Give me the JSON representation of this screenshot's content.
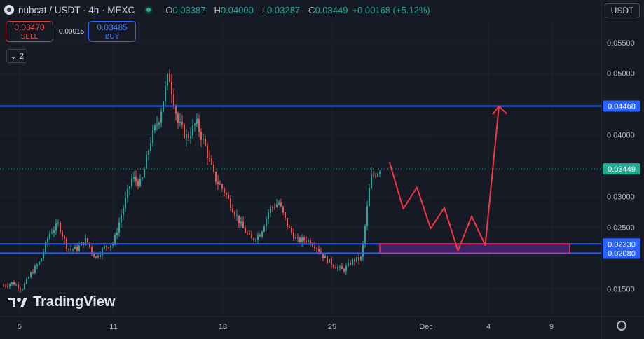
{
  "header": {
    "title": "nubcat / USDT · 4h · MEXC",
    "open_label": "O",
    "open": "0.03387",
    "high_label": "H",
    "high": "0.04000",
    "low_label": "L",
    "low": "0.03287",
    "close_label": "C",
    "close": "0.03449",
    "change": "+0.00168 (+5.12%)"
  },
  "trade": {
    "sell_price": "0.03470",
    "sell_label": "SELL",
    "spread": "0.00015",
    "buy_price": "0.03485",
    "buy_label": "BUY"
  },
  "indicators_toggle": "2",
  "currency_button": "USDT",
  "watermark": "TradingView",
  "colors": {
    "up": "#26a69a",
    "down": "#ef5350",
    "level": "#2962ff",
    "arrow": "#f23645",
    "zone": "#5b2e9a",
    "current": "#22ab94"
  },
  "chart_data": {
    "type": "candlestick",
    "timeframe": "4h",
    "x_ticks": [
      "5",
      "11",
      "18",
      "25",
      "Dec",
      "4",
      "9"
    ],
    "y_ticks": [
      "0.05500",
      "0.05000",
      "0.04000",
      "0.03000",
      "0.02500",
      "0.01500"
    ],
    "ylim": [
      0.0105,
      0.0585
    ],
    "last_price": "0.03449",
    "horizontal_levels": [
      {
        "label": "0.04468",
        "value": 0.04468
      },
      {
        "label": "0.02230",
        "value": 0.0223
      },
      {
        "label": "0.02080",
        "value": 0.0208
      }
    ],
    "zone": {
      "low": 0.0208,
      "high": 0.0223
    },
    "projected_path": [
      0.0355,
      0.028,
      0.0315,
      0.0248,
      0.0282,
      0.0212,
      0.0268,
      0.0221,
      0.04468
    ],
    "price_path": [
      0.0155,
      0.016,
      0.015,
      0.0175,
      0.0195,
      0.024,
      0.0255,
      0.0215,
      0.0215,
      0.023,
      0.02,
      0.0218,
      0.0225,
      0.028,
      0.033,
      0.032,
      0.039,
      0.043,
      0.05,
      0.042,
      0.0395,
      0.042,
      0.038,
      0.033,
      0.031,
      0.028,
      0.025,
      0.023,
      0.024,
      0.028,
      0.029,
      0.025,
      0.0228,
      0.023,
      0.022,
      0.02,
      0.0188,
      0.018,
      0.0195,
      0.02,
      0.033,
      0.0345
    ]
  }
}
